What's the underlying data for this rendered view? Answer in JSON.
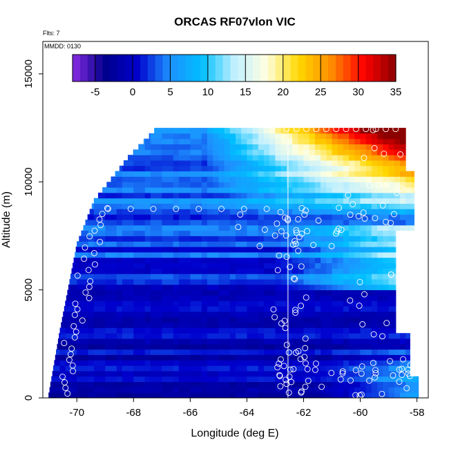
{
  "chart_data": {
    "type": "heatmap",
    "title": "ORCAS RF07vlon VIC",
    "annotations": [
      "Flts: 7",
      "MMDD: 0130"
    ],
    "xlabel": "Longitude (deg E)",
    "ylabel": "Altitude (m)",
    "xlim": [
      -71.2,
      -57.6
    ],
    "ylim": [
      0,
      16500
    ],
    "x_ticks": [
      -70,
      -68,
      -66,
      -64,
      -62,
      -60,
      -58
    ],
    "y_ticks": [
      0,
      5000,
      10000,
      15000
    ],
    "x_tick_labels": [
      "-70",
      "-68",
      "-66",
      "-64",
      "-62",
      "-60",
      "-58"
    ],
    "y_tick_labels": [
      "0",
      "5000",
      "10000",
      "15000"
    ],
    "colorbar": {
      "range": [
        -8,
        35
      ],
      "ticks": [
        -5,
        0,
        5,
        10,
        15,
        20,
        25,
        30,
        35
      ],
      "tick_labels": [
        "-5",
        "0",
        "5",
        "10",
        "15",
        "20",
        "25",
        "30",
        "35"
      ],
      "colors": [
        "#8a2be2",
        "#00008b",
        "#0000cd",
        "#1e90ff",
        "#00bfff",
        "#bfefff",
        "#ffffe0",
        "#ffd700",
        "#ff8c00",
        "#ff0000",
        "#8b0000"
      ]
    },
    "vertical_reference_line_lon": -62.55,
    "field_description": "VIC values: ~-3 to 8 at low/mid altitudes, rising to 20-35 in upper-east region"
  },
  "colors": {
    "marker": "#ffffff",
    "refline": "#ffffff"
  }
}
